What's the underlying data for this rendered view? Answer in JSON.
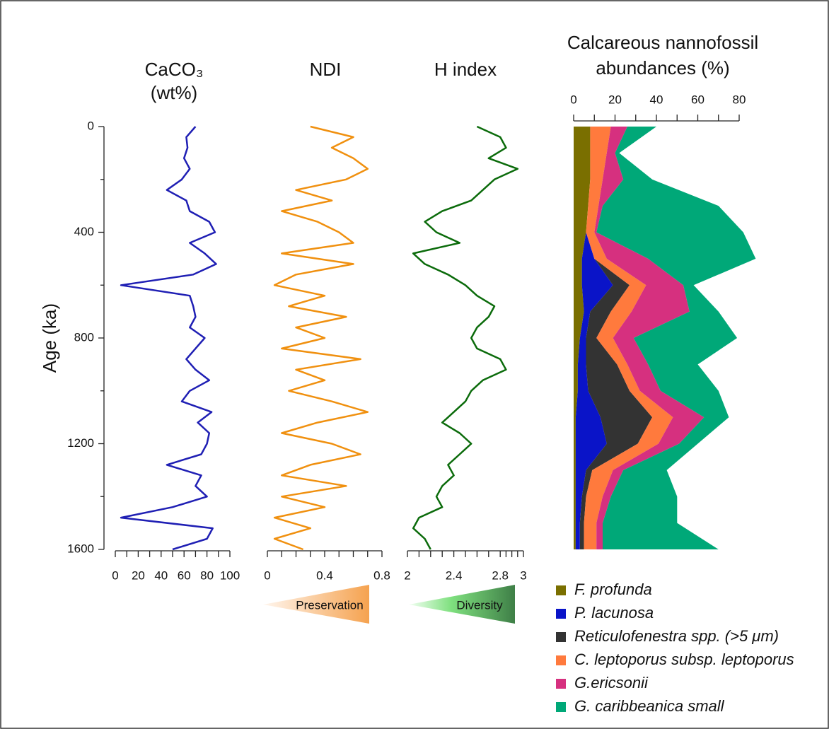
{
  "chart_data": [
    {
      "type": "profile",
      "title": [
        "CaCO₃",
        "(wt%)"
      ],
      "ylabel": "Age (ka)",
      "color": "#1f1fb4",
      "ylim": [
        0,
        1600
      ],
      "yticks": [
        0,
        400,
        800,
        1200,
        1600
      ],
      "xlim": [
        0,
        100
      ],
      "xticks": [
        0,
        20,
        40,
        60,
        80,
        100
      ],
      "y": [
        0,
        40,
        80,
        120,
        160,
        200,
        240,
        280,
        320,
        360,
        400,
        440,
        480,
        520,
        560,
        600,
        640,
        680,
        720,
        760,
        800,
        840,
        880,
        920,
        960,
        1000,
        1040,
        1080,
        1120,
        1160,
        1200,
        1240,
        1280,
        1320,
        1360,
        1400,
        1440,
        1480,
        1520,
        1560,
        1600
      ],
      "values": [
        70,
        62,
        63,
        60,
        65,
        58,
        45,
        62,
        65,
        82,
        87,
        65,
        78,
        88,
        68,
        5,
        65,
        68,
        70,
        65,
        78,
        70,
        62,
        70,
        82,
        65,
        58,
        84,
        72,
        82,
        80,
        75,
        45,
        75,
        70,
        80,
        50,
        5,
        85,
        80,
        50
      ]
    },
    {
      "type": "profile",
      "title": [
        "NDI"
      ],
      "color": "#f0900f",
      "annotation": "Preservation",
      "ylim": [
        0,
        1600
      ],
      "xlim": [
        0,
        0.8
      ],
      "xticks": [
        0,
        0.4,
        0.8
      ],
      "y": [
        0,
        40,
        80,
        120,
        160,
        200,
        240,
        280,
        320,
        360,
        400,
        440,
        480,
        520,
        560,
        600,
        640,
        680,
        720,
        760,
        800,
        840,
        880,
        920,
        960,
        1000,
        1040,
        1080,
        1120,
        1160,
        1200,
        1240,
        1280,
        1320,
        1360,
        1400,
        1440,
        1480,
        1520,
        1560,
        1600
      ],
      "values": [
        0.3,
        0.6,
        0.45,
        0.6,
        0.7,
        0.55,
        0.2,
        0.45,
        0.1,
        0.35,
        0.5,
        0.6,
        0.1,
        0.6,
        0.2,
        0.05,
        0.4,
        0.15,
        0.55,
        0.2,
        0.4,
        0.1,
        0.65,
        0.2,
        0.4,
        0.15,
        0.45,
        0.7,
        0.35,
        0.1,
        0.45,
        0.65,
        0.3,
        0.1,
        0.55,
        0.1,
        0.4,
        0.05,
        0.3,
        0.05,
        0.25
      ]
    },
    {
      "type": "profile",
      "title": [
        "H index"
      ],
      "color": "#0b6b0b",
      "annotation": "Diversity",
      "ylim": [
        0,
        1600
      ],
      "xlim": [
        2,
        3
      ],
      "xticks": [
        2,
        2.4,
        2.8,
        3
      ],
      "y": [
        0,
        40,
        80,
        120,
        160,
        200,
        240,
        280,
        320,
        360,
        400,
        440,
        480,
        520,
        560,
        600,
        640,
        680,
        720,
        760,
        800,
        840,
        880,
        920,
        960,
        1000,
        1040,
        1080,
        1120,
        1160,
        1200,
        1240,
        1280,
        1320,
        1360,
        1400,
        1440,
        1480,
        1520,
        1560,
        1600
      ],
      "values": [
        2.6,
        2.8,
        2.85,
        2.7,
        2.95,
        2.75,
        2.65,
        2.55,
        2.3,
        2.15,
        2.25,
        2.45,
        2.05,
        2.15,
        2.35,
        2.5,
        2.6,
        2.75,
        2.7,
        2.6,
        2.55,
        2.6,
        2.8,
        2.85,
        2.65,
        2.55,
        2.5,
        2.4,
        2.3,
        2.45,
        2.55,
        2.45,
        2.35,
        2.4,
        2.3,
        2.25,
        2.3,
        2.1,
        2.05,
        2.15,
        2.2
      ]
    },
    {
      "type": "stacked-profile",
      "title": [
        "Calcareous nannofossil",
        "abundances (%)"
      ],
      "ylim": [
        0,
        1600
      ],
      "xlim": [
        0,
        80
      ],
      "xticks": [
        0,
        20,
        40,
        60,
        80
      ],
      "y": [
        0,
        100,
        200,
        300,
        400,
        500,
        600,
        700,
        800,
        900,
        1000,
        1100,
        1200,
        1300,
        1400,
        1500,
        1600
      ],
      "series": [
        {
          "name": "F. profunda",
          "color": "#7a6f00",
          "values": [
            8,
            8,
            8,
            7,
            6,
            4,
            4,
            5,
            3,
            2,
            2,
            1,
            1,
            1,
            1,
            1,
            1
          ]
        },
        {
          "name": "P. lacunosa",
          "color": "#0a14c8",
          "values": [
            0,
            0,
            0,
            0,
            0,
            6,
            15,
            3,
            3,
            4,
            5,
            12,
            15,
            5,
            3,
            2,
            2
          ]
        },
        {
          "name": "Reticulofenestra spp. (>5 μm)",
          "color": "#333333",
          "values": [
            0,
            0,
            0,
            0,
            0,
            0,
            8,
            10,
            5,
            15,
            20,
            25,
            15,
            3,
            2,
            2,
            2
          ]
        },
        {
          "name": "C. leptoporus subsp. leptoporus",
          "color": "#ff7a3d",
          "values": [
            10,
            8,
            6,
            5,
            4,
            6,
            8,
            10,
            8,
            5,
            5,
            10,
            10,
            10,
            8,
            6,
            6
          ]
        },
        {
          "name": "G.ericsonii",
          "color": "#d6307f",
          "values": [
            8,
            4,
            10,
            2,
            1,
            20,
            18,
            28,
            10,
            10,
            10,
            15,
            10,
            5,
            4,
            3,
            3
          ]
        },
        {
          "name": "G. caribbeanica small",
          "color": "#00a878",
          "values": [
            14,
            2,
            14,
            56,
            71,
            52,
            5,
            14,
            50,
            24,
            28,
            12,
            9,
            21,
            32,
            36,
            56
          ]
        }
      ]
    }
  ]
}
